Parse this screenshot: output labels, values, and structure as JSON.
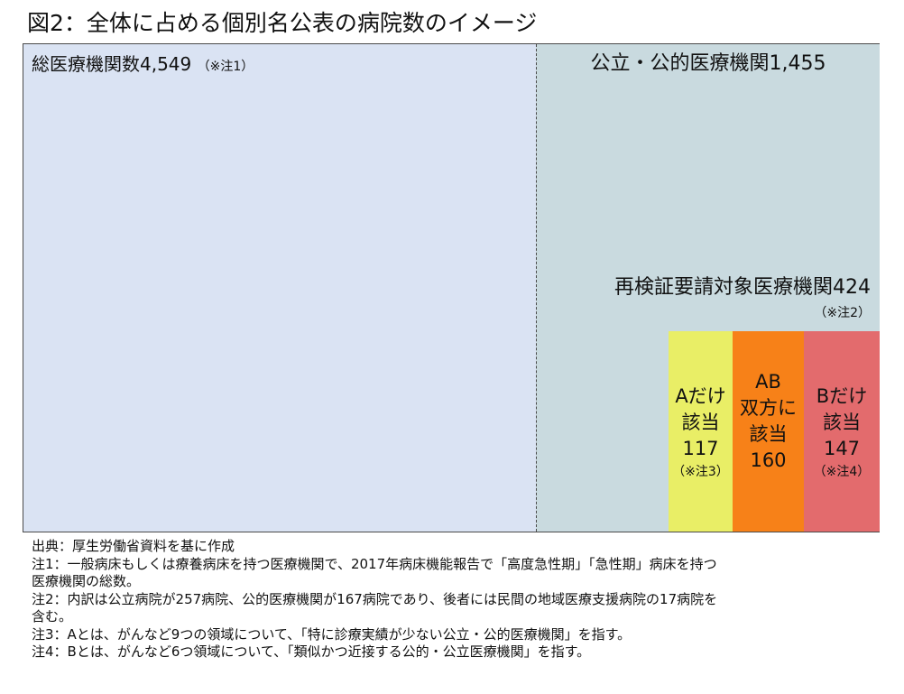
{
  "title": "図2：全体に占める個別名公表の病院数のイメージ",
  "total": {
    "label": "総医療機関数4,549",
    "note": "（※注1）"
  },
  "public": {
    "label": "公立・公的医療機関1,455"
  },
  "review": {
    "label": "再検証要請対象医療機関424",
    "note": "（※注2）"
  },
  "subsets": {
    "a": {
      "line1": "Aだけ",
      "line2": "該当",
      "value": "117",
      "note": "（※注3）"
    },
    "ab": {
      "line1": "AB",
      "line2": "双方に",
      "line3": "該当",
      "value": "160"
    },
    "b": {
      "line1": "Bだけ",
      "line2": "該当",
      "value": "147",
      "note": "（※注4）"
    }
  },
  "colors": {
    "total": "#dae3f3",
    "public": "#c9dadf",
    "a_only": "#e9ee66",
    "ab_both": "#f78118",
    "b_only": "#e36b6d"
  },
  "notes": {
    "source": "出典：厚生労働省資料を基に作成",
    "note1_line1": "注1：一般病床もしくは療養病床を持つ医療機関で、2017年病床機能報告で「高度急性期」「急性期」病床を持つ",
    "note1_line2": "医療機関の総数。",
    "note2_line1": "注2：内訳は公立病院が257病院、公的医療機関が167病院であり、後者には民間の地域医療支援病院の17病院を",
    "note2_line2": "含む。",
    "note3": "注3：Aとは、がんなど9つの領域について、「特に診療実績が少ない公立・公的医療機関」を指す。",
    "note4": "注4：Bとは、がんなど6つ領域について、「類似かつ近接する公的・公立医療機関」を指す。"
  }
}
